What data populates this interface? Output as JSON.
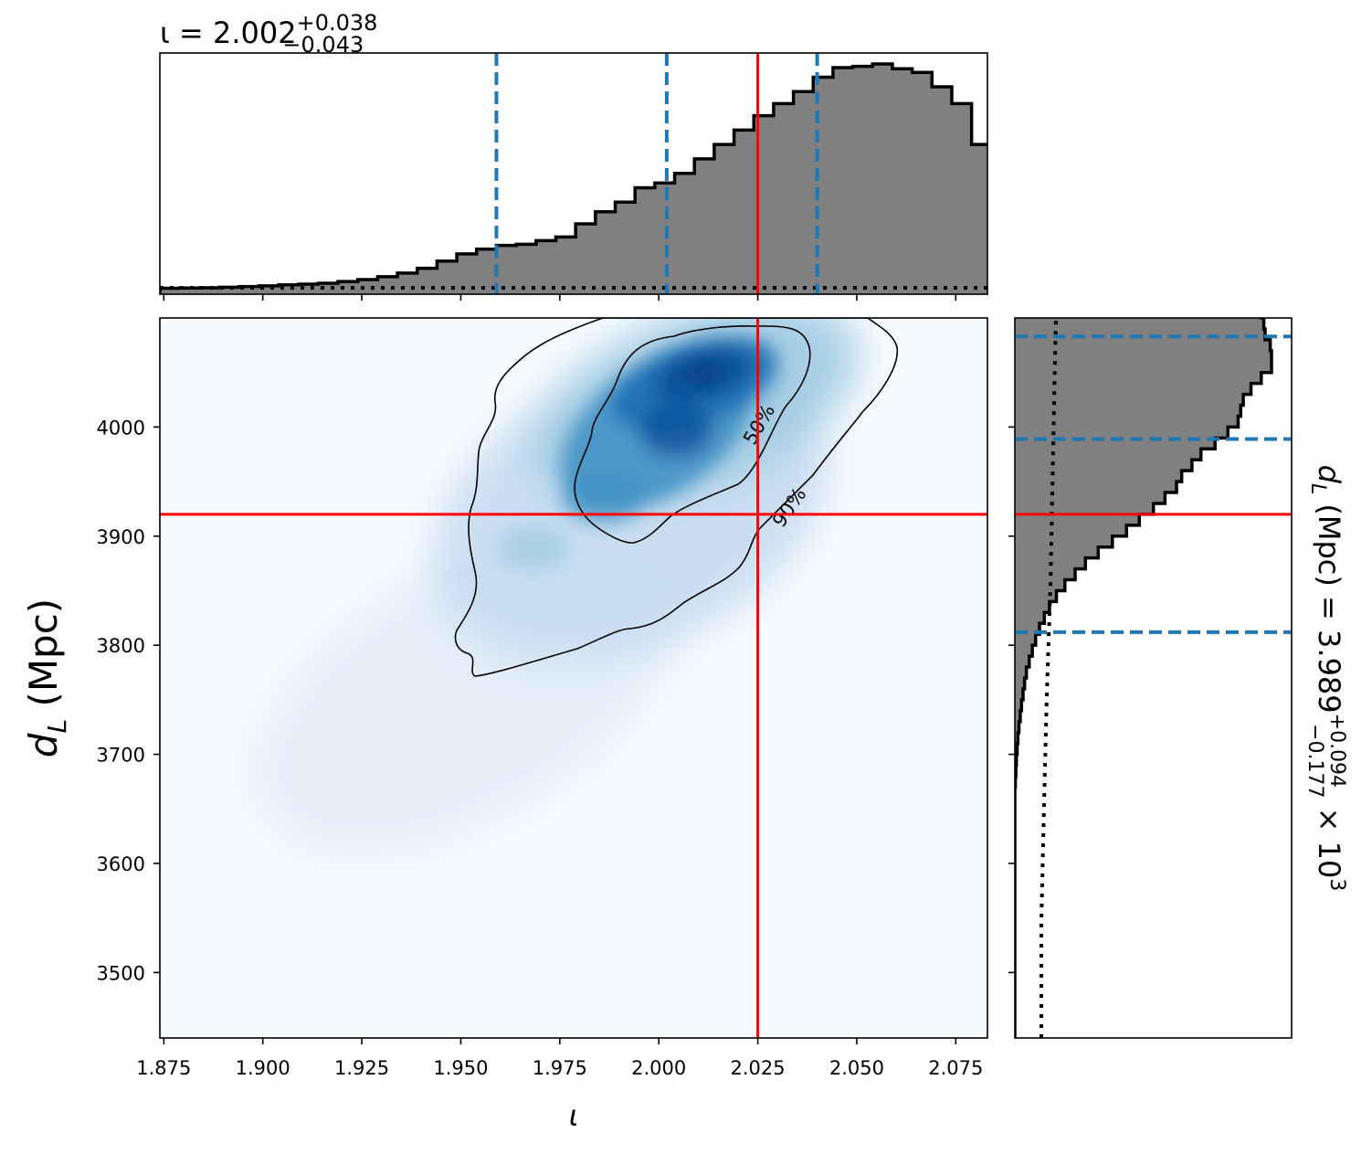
{
  "chart_data": {
    "type": "corner",
    "parameters": {
      "x": {
        "symbol": "ι",
        "median": 2.002,
        "plus": "+0.038",
        "minus": "−0.043",
        "injected": 2.025,
        "credible_interval": [
          1.959,
          2.04
        ],
        "lim": [
          1.874,
          2.083
        ]
      },
      "y": {
        "symbol": "dL",
        "unit": "(Mpc)",
        "median": "3.989",
        "plus": "+0.094",
        "minus": "−0.177",
        "scale": "× 10",
        "scale_exp": "3",
        "injected": 3920,
        "credible_interval": [
          3812,
          4083
        ],
        "lim": [
          3440,
          4100
        ]
      }
    },
    "top_title": {
      "prefix": "ι = 2.002",
      "sup": "+0.038",
      "sub": "−0.043"
    },
    "x_axis": {
      "label": "ι",
      "ticks": [
        1.875,
        1.9,
        1.925,
        1.95,
        1.975,
        2.0,
        2.025,
        2.05,
        2.075
      ],
      "tick_labels": [
        "1.875",
        "1.900",
        "1.925",
        "1.950",
        "1.975",
        "2.000",
        "2.025",
        "2.050",
        "2.075"
      ]
    },
    "y_axis": {
      "label_main": "d",
      "label_sub": "L",
      "label_unit": "(Mpc)",
      "ticks": [
        3500,
        3600,
        3700,
        3800,
        3900,
        4000
      ],
      "tick_labels": [
        "3500",
        "3600",
        "3700",
        "3800",
        "3900",
        "4000"
      ]
    },
    "right_title": {
      "prefix": "d",
      "sub_L": "L",
      "mid": " (Mpc) = 3.989",
      "sup": "+0.094",
      "sub": "−0.177",
      "suffix": " × 10",
      "exp": "3"
    },
    "contour_labels": [
      "50%",
      "90%"
    ],
    "x_hist": {
      "edges_start": 1.874,
      "bin_width": 0.005,
      "counts": [
        0.2,
        0.3,
        0.4,
        0.6,
        0.9,
        1.2,
        1.6,
        1.9,
        2.3,
        3.0,
        3.8,
        5.0,
        6.5,
        8.5,
        11.5,
        14.5,
        16.5,
        18.0,
        18.5,
        20.0,
        21.5,
        27.0,
        32.0,
        36.0,
        42.0,
        44.0,
        48.0,
        54.0,
        60.0,
        66.0,
        72.0,
        77.0,
        82.0,
        88.0,
        92.0,
        92.5,
        93.5,
        91.5,
        90.0,
        84.0,
        77.0,
        60.0,
        53.0,
        50.0,
        45.0,
        31.0,
        24.0,
        20.0,
        12.5,
        9.0,
        6.5,
        5.0,
        3.0,
        1.8,
        1.2,
        0.9,
        0.6,
        0.4
      ]
    },
    "y_hist": {
      "edges_start": 3440,
      "bin_width": 10,
      "counts": [
        0,
        0,
        0,
        0,
        0,
        0,
        0,
        0,
        0,
        0,
        0,
        0,
        0,
        0,
        0,
        0,
        0,
        0,
        0,
        0,
        0,
        0,
        0,
        0.2,
        0.4,
        0.6,
        0.9,
        1.2,
        1.6,
        2.1,
        2.6,
        3.2,
        3.8,
        4.5,
        5.6,
        6.8,
        8.1,
        9.6,
        11.5,
        13.5,
        16.2,
        19.5,
        23.5,
        27.5,
        32.5,
        38.0,
        43.5,
        48.5,
        54.0,
        58.5,
        63.0,
        65.0,
        69.0,
        72.5,
        78.0,
        83.0,
        87.0,
        88.0,
        89.0,
        92.0,
        96.0,
        100.0,
        100.0,
        99.5,
        97.5,
        97.0,
        96.0,
        95.0,
        93.5,
        80.0,
        72.0,
        55.0
      ]
    },
    "colors": {
      "hist_fill": "#808080",
      "hist_edge": "#000000",
      "credible": "#1f77b4",
      "injected": "#ff0000",
      "cmap_low": "#f7fbff",
      "cmap_high": "#08306b"
    }
  }
}
